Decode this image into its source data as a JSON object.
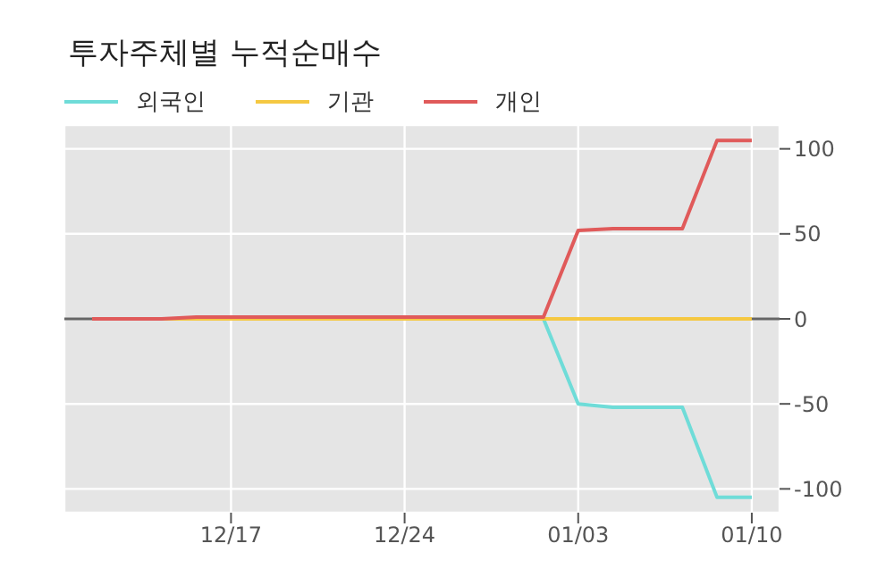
{
  "chart_data": {
    "type": "line",
    "title": "투자주체별 누적순매수",
    "categories": [
      null,
      null,
      null,
      null,
      "12/17",
      null,
      null,
      null,
      null,
      "12/24",
      null,
      null,
      null,
      null,
      "01/03",
      null,
      null,
      null,
      null,
      "01/10"
    ],
    "series": [
      {
        "name": "외국인",
        "color": "#6fdcd8",
        "values": [
          null,
          null,
          null,
          null,
          null,
          null,
          null,
          null,
          null,
          null,
          null,
          null,
          null,
          0,
          -50,
          -52,
          -52,
          -52,
          -105,
          -105
        ]
      },
      {
        "name": "기관",
        "color": "#f5c842",
        "values": [
          0,
          0,
          0,
          0,
          0,
          0,
          0,
          0,
          0,
          0,
          0,
          0,
          0,
          0,
          0,
          0,
          0,
          0,
          0,
          0
        ]
      },
      {
        "name": "개인",
        "color": "#e05a5a",
        "values": [
          0,
          0,
          0,
          1,
          1,
          1,
          1,
          1,
          1,
          1,
          1,
          1,
          1,
          1,
          52,
          53,
          53,
          53,
          105,
          105
        ]
      }
    ],
    "ylim": [
      -114,
      114
    ],
    "yticks": [
      -100,
      -50,
      0,
      50,
      100
    ],
    "grid": true,
    "legend": "top left",
    "marker": "none",
    "line_style": "solid",
    "ref_lines": [
      {
        "axis": "y",
        "value": 0,
        "color": "#666666"
      }
    ]
  }
}
